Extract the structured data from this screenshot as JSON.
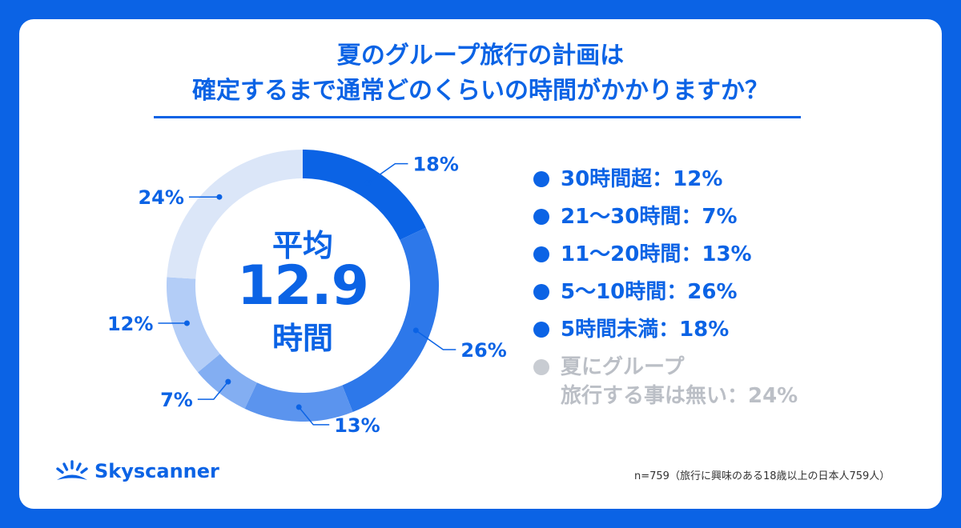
{
  "title": {
    "line1": "夏のグループ旅行の計画は",
    "line2": "確定するまで通常どのくらいの時間がかかりますか？"
  },
  "center": {
    "label": "平均",
    "value": "12.9",
    "unit": "時間"
  },
  "legend": [
    {
      "text": "30時間超：12%",
      "color": "#0b63e5"
    },
    {
      "text": "21〜30時間：7%",
      "color": "#0b63e5"
    },
    {
      "text": "11〜20時間：13%",
      "color": "#0b63e5"
    },
    {
      "text": "5〜10時間：26%",
      "color": "#0b63e5"
    },
    {
      "text": "5時間未満：18%",
      "color": "#0b63e5"
    },
    {
      "text": "夏にグループ\n旅行する事は無い：24%",
      "color": "#c8ccd2"
    }
  ],
  "chart_data": {
    "type": "pie",
    "style": "donut",
    "slices": [
      {
        "label": "5時間未満",
        "value": 18,
        "color": "#0b63e5",
        "value_label": "18%"
      },
      {
        "label": "5〜10時間",
        "value": 26,
        "color": "#2d78ea",
        "value_label": "26%"
      },
      {
        "label": "11〜20時間",
        "value": 13,
        "color": "#5b94ee",
        "value_label": "13%"
      },
      {
        "label": "21〜30時間",
        "value": 7,
        "color": "#83aef2",
        "value_label": "7%"
      },
      {
        "label": "30時間超",
        "value": 12,
        "color": "#b3cdf7",
        "value_label": "12%"
      },
      {
        "label": "夏にグループ旅行する事は無い",
        "value": 24,
        "color": "#dbe6f8",
        "value_label": "24%"
      }
    ]
  },
  "brand": {
    "name": "Skyscanner"
  },
  "footnote": "n=759（旅行に興味のある18歳以上の日本人759人）"
}
